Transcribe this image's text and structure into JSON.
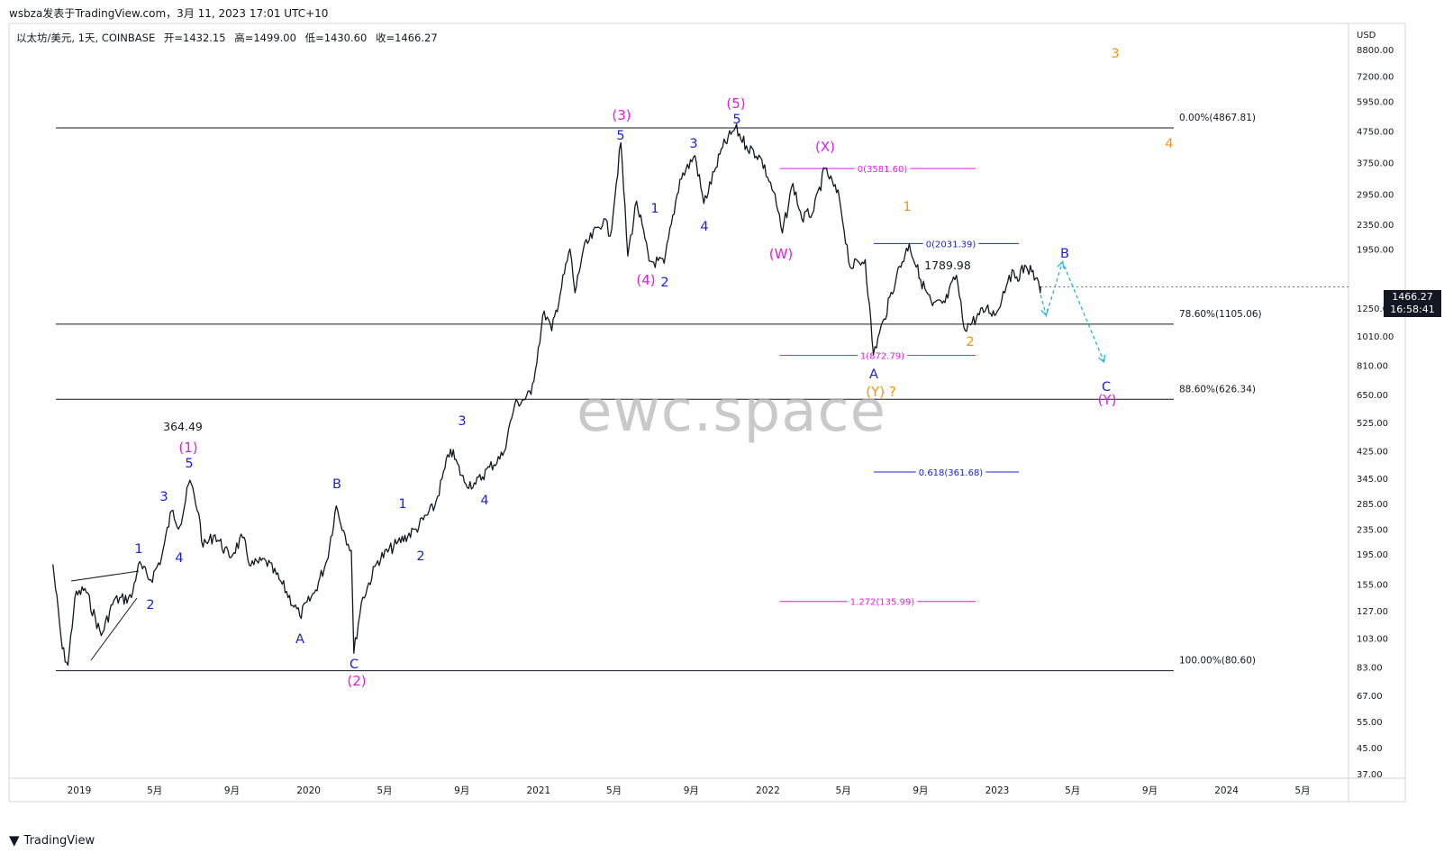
{
  "header": {
    "publisher": "wsbza发表于TradingView.com，3月 11, 2023 17:01 UTC+10"
  },
  "symbol": {
    "name": "以太坊/美元, 1天, COINBASE",
    "open": "开=1432.15",
    "high": "高=1499.00",
    "low": "低=1430.60",
    "close": "收=1466.27"
  },
  "price_badge": {
    "price": "1466.27",
    "countdown": "16:58:41"
  },
  "watermark": "ewc.space",
  "footer": {
    "logo": "TradingView"
  },
  "colors": {
    "wave_magenta": "#e01ee0",
    "wave_blue": "#1a22d8",
    "wave_orange": "#f7930e",
    "forecast_cyan": "#27b8d0",
    "candle": "#131722"
  },
  "chart_data": {
    "type": "line",
    "y_scale": "log",
    "currency_label": "USD",
    "y_ticks": [
      "37.00",
      "45.00",
      "55.00",
      "67.00",
      "83.00",
      "103.00",
      "127.00",
      "155.00",
      "195.00",
      "235.00",
      "285.00",
      "345.00",
      "425.00",
      "525.00",
      "650.00",
      "810.00",
      "1010.00",
      "1250.00",
      "1950.00",
      "2350.00",
      "2950.00",
      "3750.00",
      "4750.00",
      "5950.00",
      "7200.00",
      "8800.00"
    ],
    "x_ticks": [
      "2019",
      "5月",
      "9月",
      "2020",
      "5月",
      "9月",
      "2021",
      "5月",
      "9月",
      "2022",
      "5月",
      "9月",
      "2023",
      "5月",
      "9月",
      "2024",
      "5月"
    ],
    "series": [
      {
        "values": [
          [
            "2018-11-20",
            180
          ],
          [
            "2018-12-05",
            95
          ],
          [
            "2018-12-14",
            84
          ],
          [
            "2018-12-25",
            140
          ],
          [
            "2019-01-10",
            150
          ],
          [
            "2019-02-05",
            105
          ],
          [
            "2019-02-25",
            137
          ],
          [
            "2019-03-25",
            140
          ],
          [
            "2019-04-05",
            180
          ],
          [
            "2019-04-25",
            160
          ],
          [
            "2019-05-12",
            190
          ],
          [
            "2019-05-28",
            270
          ],
          [
            "2019-06-10",
            240
          ],
          [
            "2019-06-26",
            340
          ],
          [
            "2019-07-10",
            265
          ],
          [
            "2019-07-17",
            205
          ],
          [
            "2019-08-05",
            225
          ],
          [
            "2019-08-28",
            190
          ],
          [
            "2019-09-18",
            220
          ],
          [
            "2019-10-01",
            178
          ],
          [
            "2019-10-25",
            185
          ],
          [
            "2019-11-20",
            155
          ],
          [
            "2019-12-18",
            122
          ],
          [
            "2020-01-10",
            145
          ],
          [
            "2020-01-30",
            185
          ],
          [
            "2020-02-14",
            280
          ],
          [
            "2020-02-28",
            225
          ],
          [
            "2020-03-09",
            200
          ],
          [
            "2020-03-13",
            92
          ],
          [
            "2020-03-25",
            135
          ],
          [
            "2020-04-20",
            185
          ],
          [
            "2020-05-20",
            210
          ],
          [
            "2020-06-20",
            235
          ],
          [
            "2020-07-20",
            280
          ],
          [
            "2020-08-14",
            430
          ],
          [
            "2020-09-05",
            335
          ],
          [
            "2020-09-23",
            330
          ],
          [
            "2020-10-15",
            375
          ],
          [
            "2020-11-05",
            410
          ],
          [
            "2020-11-24",
            600
          ],
          [
            "2020-12-20",
            650
          ],
          [
            "2021-01-10",
            1220
          ],
          [
            "2021-01-22",
            1050
          ],
          [
            "2021-02-20",
            1950
          ],
          [
            "2021-02-28",
            1400
          ],
          [
            "2021-03-13",
            1930
          ],
          [
            "2021-04-15",
            2450
          ],
          [
            "2021-04-25",
            2150
          ],
          [
            "2021-05-12",
            4350
          ],
          [
            "2021-05-23",
            1850
          ],
          [
            "2021-06-06",
            2800
          ],
          [
            "2021-06-26",
            1780
          ],
          [
            "2021-07-20",
            1750
          ],
          [
            "2021-08-14",
            3300
          ],
          [
            "2021-09-07",
            3950
          ],
          [
            "2021-09-21",
            2750
          ],
          [
            "2021-10-10",
            3600
          ],
          [
            "2021-10-21",
            4200
          ],
          [
            "2021-11-10",
            4867.81
          ],
          [
            "2021-11-28",
            4250
          ],
          [
            "2021-12-20",
            3900
          ],
          [
            "2022-01-10",
            3000
          ],
          [
            "2022-01-24",
            2200
          ],
          [
            "2022-02-10",
            3200
          ],
          [
            "2022-02-24",
            2450
          ],
          [
            "2022-03-15",
            2600
          ],
          [
            "2022-04-02",
            3581.6
          ],
          [
            "2022-04-25",
            2850
          ],
          [
            "2022-05-12",
            1700
          ],
          [
            "2022-06-05",
            1800
          ],
          [
            "2022-06-18",
            880
          ],
          [
            "2022-07-05",
            1150
          ],
          [
            "2022-07-25",
            1600
          ],
          [
            "2022-08-14",
            2031.39
          ],
          [
            "2022-09-01",
            1550
          ],
          [
            "2022-09-20",
            1270
          ],
          [
            "2022-10-10",
            1300
          ],
          [
            "2022-10-28",
            1600
          ],
          [
            "2022-11-09",
            1080
          ],
          [
            "2022-11-22",
            1120
          ],
          [
            "2022-12-15",
            1250
          ],
          [
            "2022-12-30",
            1190
          ],
          [
            "2023-01-20",
            1600
          ],
          [
            "2023-02-01",
            1580
          ],
          [
            "2023-02-16",
            1710
          ],
          [
            "2023-02-25",
            1640
          ],
          [
            "2023-03-03",
            1560
          ],
          [
            "2023-03-10",
            1430
          ],
          [
            "2023-03-11",
            1466.27
          ]
        ]
      }
    ],
    "forecast_path": [
      [
        "2023-03-11",
        1380
      ],
      [
        "2023-03-20",
        1180
      ],
      [
        "2023-04-15",
        1770
      ],
      [
        "2023-06-20",
        830
      ]
    ],
    "horizontal_levels": [
      {
        "label": "0.00%(4867.81)",
        "value": 4867.81,
        "color": "#131722",
        "span": "full"
      },
      {
        "label": "78.60%(1105.06)",
        "value": 1105.06,
        "color": "#131722",
        "span": "full"
      },
      {
        "label": "88.60%(626.34)",
        "value": 626.34,
        "color": "#131722",
        "span": "full"
      },
      {
        "label": "100.00%(80.60)",
        "value": 80.6,
        "color": "#131722",
        "span": "full"
      },
      {
        "label": "0(3581.60)",
        "value": 3581.6,
        "color": "#e01ee0",
        "span": "short"
      },
      {
        "label": "1(872.79)",
        "value": 872.79,
        "color": "#e01ee0",
        "span": "short"
      },
      {
        "label": "1.272(135.99)",
        "value": 135.99,
        "color": "#e01ee0",
        "span": "short"
      },
      {
        "label": "0(2031.39)",
        "value": 2031.39,
        "color": "#1a22d8",
        "span": "short"
      },
      {
        "label": "0.618(361.68)",
        "value": 361.68,
        "color": "#1a22d8",
        "span": "short"
      }
    ],
    "annotations": [
      {
        "text": "364.49",
        "color": "#131722"
      },
      {
        "text": "(1)",
        "color": "#e01ee0"
      },
      {
        "text": "(2)",
        "color": "#e01ee0"
      },
      {
        "text": "(3)",
        "color": "#e01ee0"
      },
      {
        "text": "(4)",
        "color": "#e01ee0"
      },
      {
        "text": "(5)",
        "color": "#e01ee0"
      },
      {
        "text": "(W)",
        "color": "#e01ee0"
      },
      {
        "text": "(X)",
        "color": "#e01ee0"
      },
      {
        "text": "(Y)",
        "color": "#e01ee0"
      },
      {
        "text": "(Y) ?",
        "color": "#f7930e"
      },
      {
        "text": "1789.98",
        "color": "#131722"
      },
      {
        "text": "1",
        "color": "#f7930e"
      },
      {
        "text": "2",
        "color": "#f7930e"
      },
      {
        "text": "3",
        "color": "#f7930e"
      },
      {
        "text": "4",
        "color": "#f7930e"
      },
      {
        "text": "1",
        "color": "#1a22d8"
      },
      {
        "text": "2",
        "color": "#1a22d8"
      },
      {
        "text": "3",
        "color": "#1a22d8"
      },
      {
        "text": "4",
        "color": "#1a22d8"
      },
      {
        "text": "5",
        "color": "#1a22d8"
      },
      {
        "text": "A",
        "color": "#1a22d8"
      },
      {
        "text": "B",
        "color": "#1a22d8"
      },
      {
        "text": "C",
        "color": "#1a22d8"
      },
      {
        "text": "1",
        "color": "#1a22d8"
      },
      {
        "text": "2",
        "color": "#1a22d8"
      },
      {
        "text": "3",
        "color": "#1a22d8"
      },
      {
        "text": "4",
        "color": "#1a22d8"
      },
      {
        "text": "1",
        "color": "#1a22d8"
      },
      {
        "text": "2",
        "color": "#1a22d8"
      },
      {
        "text": "3",
        "color": "#1a22d8"
      },
      {
        "text": "4",
        "color": "#1a22d8"
      },
      {
        "text": "5",
        "color": "#1a22d8"
      },
      {
        "text": "5",
        "color": "#1a22d8"
      },
      {
        "text": "A",
        "color": "#1a22d8"
      },
      {
        "text": "B",
        "color": "#1a22d8"
      },
      {
        "text": "C",
        "color": "#1a22d8"
      }
    ]
  }
}
